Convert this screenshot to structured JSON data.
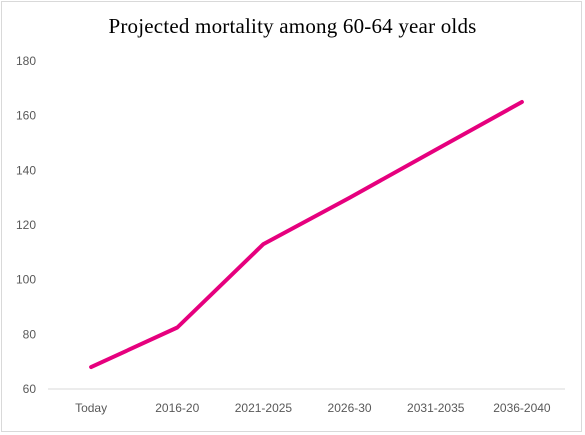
{
  "chart_data": {
    "type": "line",
    "title": "Projected mortality among 60-64 year olds",
    "xlabel": "",
    "ylabel": "",
    "categories": [
      "Today",
      "2016-20",
      "2021-2025",
      "2026-30",
      "2031-2035",
      "2036-2040"
    ],
    "series": [
      {
        "values": [
          68,
          82.5,
          113,
          130,
          147.5,
          165
        ],
        "color": "#e6007e"
      }
    ],
    "ylim": [
      60,
      180
    ],
    "yticks": [
      60,
      80,
      100,
      120,
      140,
      160,
      180
    ],
    "grid": false,
    "legend": "none"
  }
}
